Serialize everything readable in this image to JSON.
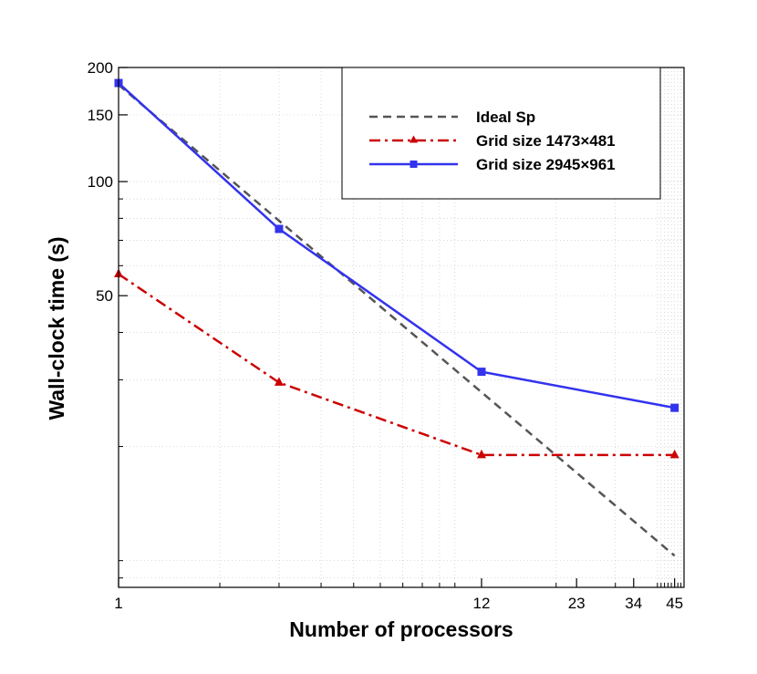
{
  "chart_data": {
    "type": "line",
    "xscale": "log",
    "yscale": "log",
    "xlabel": "Number of processors",
    "ylabel": "Wall-clock time (s)",
    "xlim": [
      1,
      48
    ],
    "ylim": [
      8.5,
      200
    ],
    "x_ticks": [
      {
        "value": 1,
        "label": "1"
      },
      {
        "value": 12,
        "label": "12"
      },
      {
        "value": 23,
        "label": "23"
      },
      {
        "value": 34,
        "label": "34"
      },
      {
        "value": 45,
        "label": "45"
      }
    ],
    "y_ticks": [
      {
        "value": 50,
        "label": "50"
      },
      {
        "value": 100,
        "label": "100"
      },
      {
        "value": 150,
        "label": "150"
      },
      {
        "value": 200,
        "label": "200"
      }
    ],
    "grid": true,
    "legend_position": "top-right",
    "series": [
      {
        "name": "Ideal Sp",
        "color": "#555555",
        "style": "dashed",
        "marker": "none",
        "x": [
          1,
          45
        ],
        "y": [
          180,
          10.3
        ]
      },
      {
        "name": "Grid size 1473×481",
        "color": "#cc0000",
        "style": "dashdot",
        "marker": "triangle",
        "x": [
          1,
          3,
          12,
          45
        ],
        "y": [
          57,
          29.5,
          19,
          19
        ]
      },
      {
        "name": "Grid size 2945×961",
        "color": "#3333ee",
        "style": "solid",
        "marker": "square",
        "x": [
          1,
          3,
          12,
          45
        ],
        "y": [
          182,
          75,
          31.5,
          25.3
        ]
      }
    ]
  }
}
